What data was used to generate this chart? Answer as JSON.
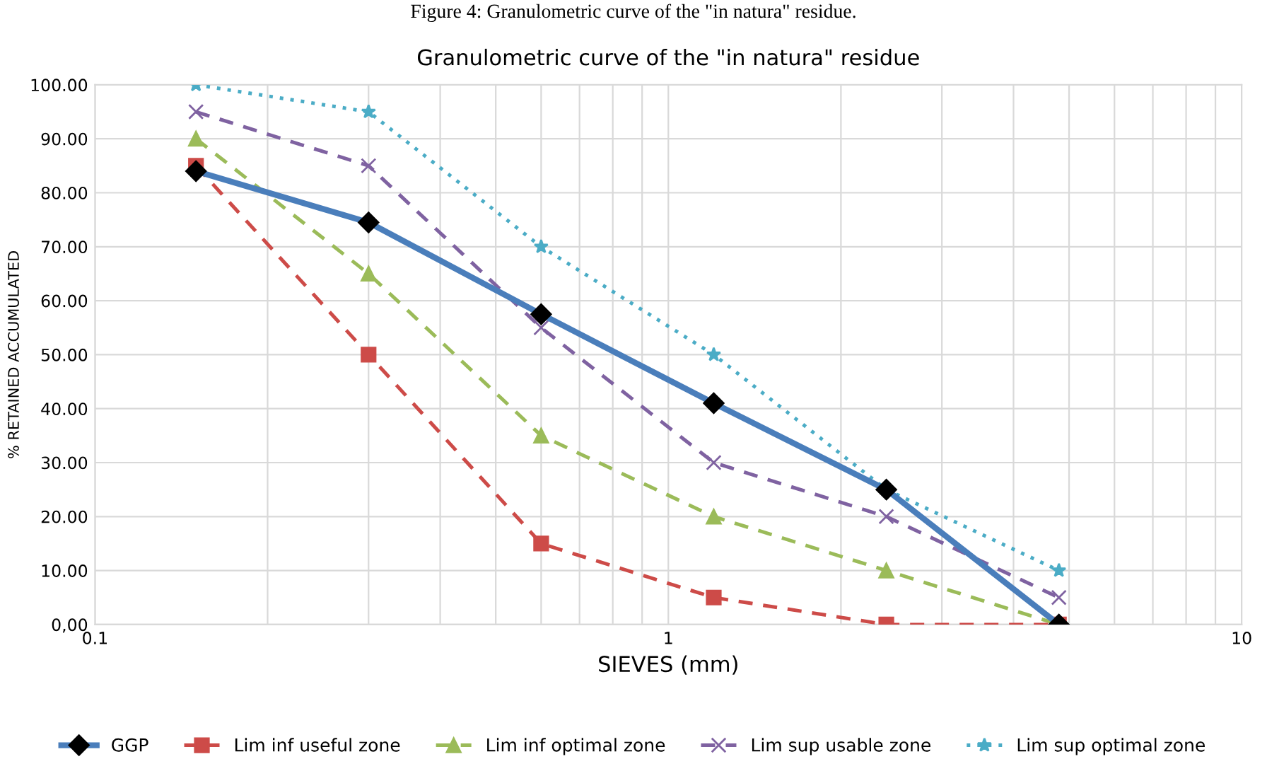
{
  "chart_data": {
    "type": "line",
    "title": "Granulometric curve of the \"in natura\" residue",
    "annotations": [
      "Figure 4: Granulometric curve of the \"in natura\" residue."
    ],
    "xlabel": "SIEVES (mm)",
    "ylabel": "% RETAINED ACCUMULATED",
    "x": [
      0.15,
      0.3,
      0.6,
      1.2,
      2.4,
      4.8
    ],
    "series": [
      {
        "name": "GGP",
        "color": "#4a7ebb",
        "marker": "diamond",
        "line_style": "solid",
        "values": [
          84,
          74.5,
          57.5,
          41,
          25,
          0
        ]
      },
      {
        "name": "Lim inf useful zone",
        "color": "#cd4b48",
        "marker": "square",
        "line_style": "dashed",
        "values": [
          85,
          50,
          15,
          5,
          0,
          0
        ]
      },
      {
        "name": "Lim inf optimal zone",
        "color": "#9bbb59",
        "marker": "triangle",
        "line_style": "dashed",
        "values": [
          90,
          65,
          35,
          20,
          10,
          0
        ]
      },
      {
        "name": "Lim sup usable zone",
        "color": "#7f62a1",
        "marker": "cross",
        "line_style": "dashed",
        "values": [
          95,
          85,
          55,
          30,
          20,
          5
        ]
      },
      {
        "name": "Lim sup optimal zone",
        "color": "#4bacc6",
        "marker": "star",
        "line_style": "dotted",
        "values": [
          100,
          95,
          70,
          50,
          25,
          10
        ]
      }
    ],
    "log": "x",
    "xlim": [
      0.1,
      10
    ],
    "xticks": [
      0.1,
      1,
      10
    ],
    "ylim": [
      0,
      100
    ],
    "yticks": [
      {
        "value": 0,
        "label": "0,00"
      },
      {
        "value": 10,
        "label": "10.00"
      },
      {
        "value": 20,
        "label": "20.00"
      },
      {
        "value": 30,
        "label": "30.00"
      },
      {
        "value": 40,
        "label": "40.00"
      },
      {
        "value": 50,
        "label": "50.00"
      },
      {
        "value": 60,
        "label": "60.00"
      },
      {
        "value": 70,
        "label": "70.00"
      },
      {
        "value": 80,
        "label": "80.00"
      },
      {
        "value": 90,
        "label": "90.00"
      },
      {
        "value": 100,
        "label": "100.00"
      }
    ],
    "grid": true,
    "legend": "bottom"
  }
}
